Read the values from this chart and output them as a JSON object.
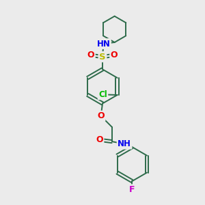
{
  "bg_color": "#ebebeb",
  "bond_color": "#2d6b4a",
  "bond_width": 1.4,
  "atom_colors": {
    "C": "#2d6b4a",
    "N": "#0000ee",
    "O": "#ee0000",
    "S": "#bbbb00",
    "Cl": "#00bb00",
    "F": "#cc00cc",
    "H": "#7799aa"
  },
  "figsize": [
    3.0,
    3.0
  ],
  "dpi": 100
}
